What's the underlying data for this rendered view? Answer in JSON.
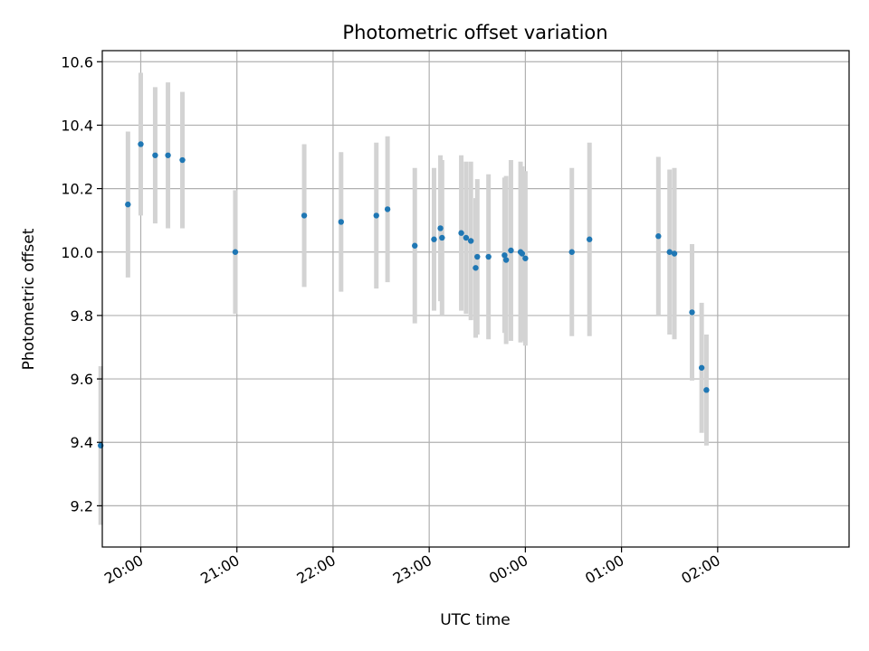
{
  "chart_data": {
    "type": "scatter",
    "title": "Photometric offset variation",
    "xlabel": "UTC time",
    "ylabel": "Photometric offset",
    "x_ticks": [
      "20:00",
      "21:00",
      "22:00",
      "23:00",
      "00:00",
      "01:00",
      "02:00"
    ],
    "y_ticks": [
      "9.2",
      "9.4",
      "9.6",
      "9.8",
      "10.0",
      "10.2",
      "10.4",
      "10.6"
    ],
    "xlim": [
      "19:36",
      "03:22"
    ],
    "ylim": [
      9.07,
      10.635
    ],
    "grid": true,
    "point_color": "#1f77b4",
    "errorbar_color": "#d3d3d3",
    "points": [
      {
        "x": "19:35",
        "y": 9.39,
        "err": 0.25
      },
      {
        "x": "19:52",
        "y": 10.15,
        "err": 0.23
      },
      {
        "x": "20:00",
        "y": 10.34,
        "err": 0.225
      },
      {
        "x": "20:09",
        "y": 10.305,
        "err": 0.215
      },
      {
        "x": "20:17",
        "y": 10.305,
        "err": 0.23
      },
      {
        "x": "20:26",
        "y": 10.29,
        "err": 0.215
      },
      {
        "x": "20:59",
        "y": 10.0,
        "err": 0.195
      },
      {
        "x": "21:42",
        "y": 10.115,
        "err": 0.225
      },
      {
        "x": "22:05",
        "y": 10.095,
        "err": 0.22
      },
      {
        "x": "22:27",
        "y": 10.115,
        "err": 0.23
      },
      {
        "x": "22:34",
        "y": 10.135,
        "err": 0.23
      },
      {
        "x": "22:51",
        "y": 10.02,
        "err": 0.245
      },
      {
        "x": "23:03",
        "y": 10.04,
        "err": 0.225
      },
      {
        "x": "23:07",
        "y": 10.075,
        "err": 0.23
      },
      {
        "x": "23:08",
        "y": 10.045,
        "err": 0.245
      },
      {
        "x": "23:20",
        "y": 10.06,
        "err": 0.245
      },
      {
        "x": "23:23",
        "y": 10.045,
        "err": 0.24
      },
      {
        "x": "23:26",
        "y": 10.035,
        "err": 0.25
      },
      {
        "x": "23:29",
        "y": 9.95,
        "err": 0.22
      },
      {
        "x": "23:30",
        "y": 9.985,
        "err": 0.245
      },
      {
        "x": "23:37",
        "y": 9.985,
        "err": 0.26
      },
      {
        "x": "23:47",
        "y": 9.99,
        "err": 0.245
      },
      {
        "x": "23:48",
        "y": 9.975,
        "err": 0.265
      },
      {
        "x": "23:51",
        "y": 10.005,
        "err": 0.285
      },
      {
        "x": "23:57",
        "y": 10.0,
        "err": 0.285
      },
      {
        "x": "23:58",
        "y": 9.995,
        "err": 0.275
      },
      {
        "x": "00:00",
        "y": 9.98,
        "err": 0.275
      },
      {
        "x": "00:29",
        "y": 10.0,
        "err": 0.265
      },
      {
        "x": "00:40",
        "y": 10.04,
        "err": 0.305
      },
      {
        "x": "01:23",
        "y": 10.05,
        "err": 0.25
      },
      {
        "x": "01:30",
        "y": 10.0,
        "err": 0.26
      },
      {
        "x": "01:33",
        "y": 9.995,
        "err": 0.27
      },
      {
        "x": "01:44",
        "y": 9.81,
        "err": 0.215
      },
      {
        "x": "01:50",
        "y": 9.635,
        "err": 0.205
      },
      {
        "x": "01:53",
        "y": 9.565,
        "err": 0.175
      }
    ]
  }
}
